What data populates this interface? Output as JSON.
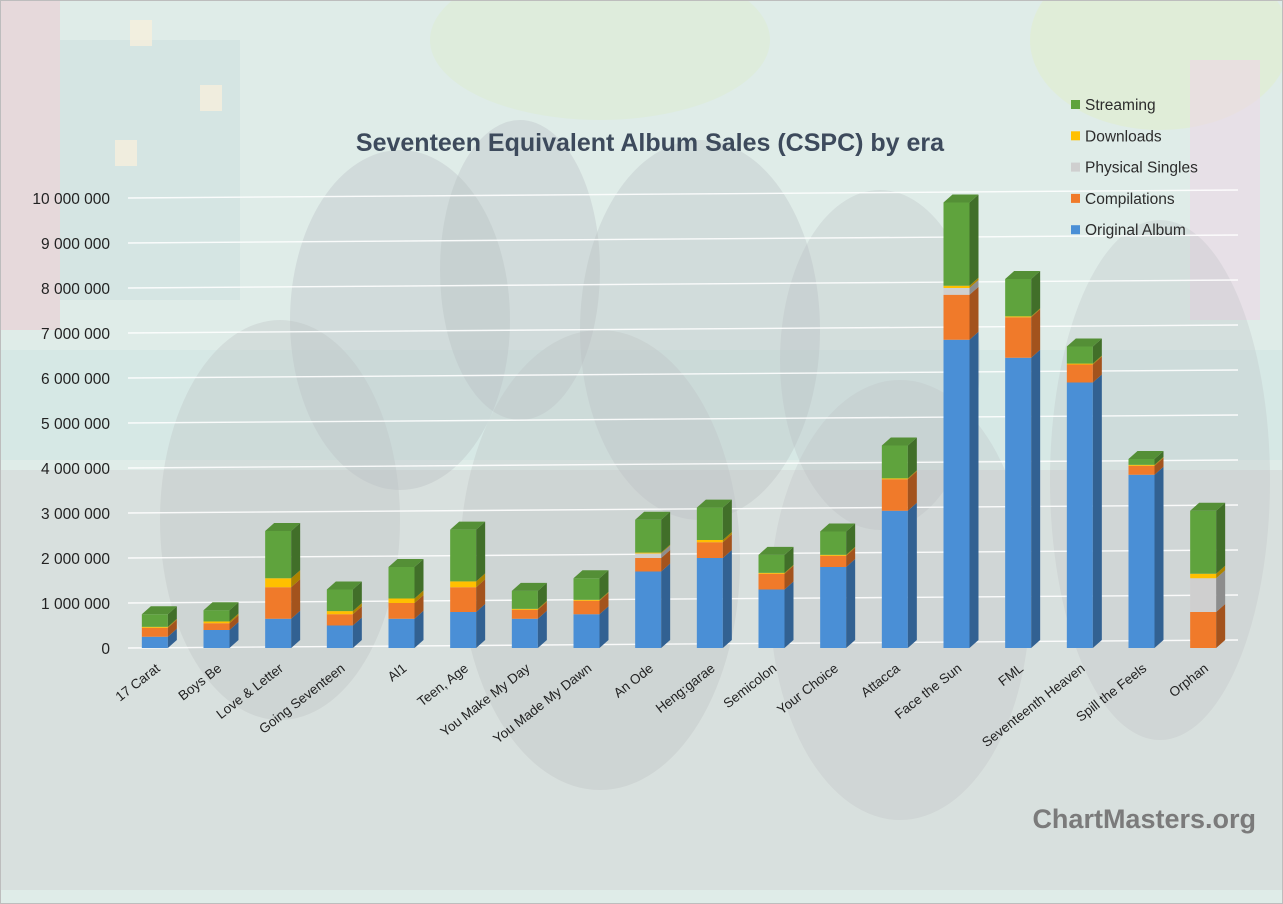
{
  "watermark": "ChartMasters.org",
  "chart_data": {
    "type": "bar",
    "stacked": true,
    "title": "Seventeen Equivalent Album Sales (CSPC) by era",
    "xlabel": "",
    "ylabel": "",
    "ylim": [
      0,
      10000000
    ],
    "yticks": [
      0,
      1000000,
      2000000,
      3000000,
      4000000,
      5000000,
      6000000,
      7000000,
      8000000,
      9000000,
      10000000
    ],
    "ytick_labels": [
      "0",
      "1 000 000",
      "2 000 000",
      "3 000 000",
      "4 000 000",
      "5 000 000",
      "6 000 000",
      "7 000 000",
      "8 000 000",
      "9 000 000",
      "10 000 000"
    ],
    "grid": true,
    "legend_position": "top-right",
    "categories": [
      "17 Carat",
      "Boys Be",
      "Love & Letter",
      "Going Seventeen",
      "Al1",
      "Teen, Age",
      "You Make My Day",
      "You Made My Dawn",
      "An Ode",
      "Heng:garae",
      "Semicolon",
      "Your Choice",
      "Attacca",
      "Face the Sun",
      "FML",
      "Seventeenth Heaven",
      "Spill the Feels",
      "Orphan"
    ],
    "series": [
      {
        "name": "Original Album",
        "color": "#4a8fd6",
        "values": [
          250000,
          400000,
          650000,
          500000,
          650000,
          800000,
          650000,
          750000,
          1700000,
          2000000,
          1300000,
          1800000,
          3050000,
          6850000,
          6450000,
          5900000,
          3850000,
          0
        ]
      },
      {
        "name": "Compilations",
        "color": "#f07a2a",
        "values": [
          200000,
          150000,
          700000,
          250000,
          350000,
          550000,
          200000,
          300000,
          300000,
          350000,
          350000,
          250000,
          700000,
          1000000,
          900000,
          400000,
          200000,
          800000
        ]
      },
      {
        "name": "Physical Singles",
        "color": "#cfcfcf",
        "values": [
          0,
          0,
          0,
          0,
          0,
          0,
          0,
          0,
          100000,
          0,
          0,
          0,
          0,
          150000,
          0,
          0,
          0,
          750000
        ]
      },
      {
        "name": "Downloads",
        "color": "#ffc000",
        "values": [
          20000,
          40000,
          200000,
          70000,
          100000,
          130000,
          20000,
          20000,
          20000,
          50000,
          20000,
          20000,
          20000,
          50000,
          20000,
          20000,
          20000,
          100000
        ]
      },
      {
        "name": "Streaming",
        "color": "#5fa33d",
        "values": [
          280000,
          250000,
          1050000,
          480000,
          700000,
          1150000,
          400000,
          480000,
          730000,
          720000,
          400000,
          520000,
          730000,
          1850000,
          830000,
          380000,
          130000,
          1400000
        ]
      }
    ]
  }
}
